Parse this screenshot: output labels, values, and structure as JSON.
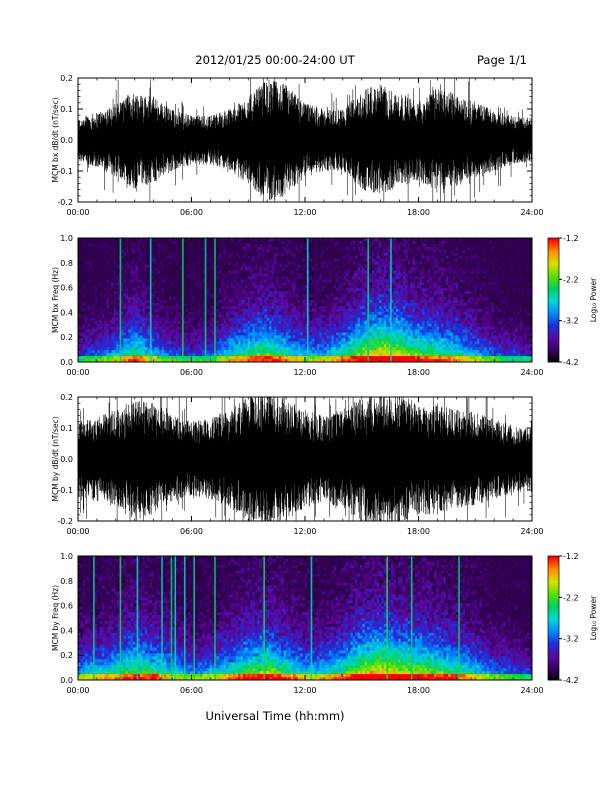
{
  "header": {
    "title": "2012/01/25  00:00-24:00 UT",
    "page": "Page 1/1"
  },
  "xlabel": "Universal Time (hh:mm)",
  "colors": {
    "trace": "#000000",
    "axes": "#000000",
    "spectrogram_bg": "#1a0033"
  },
  "colorbar": {
    "label": "Log₁₀ Power",
    "ticks": [
      "-1.2",
      "-2.2",
      "-3.2",
      "-4.2"
    ],
    "range": [
      -4.2,
      -1.2
    ],
    "palette": [
      "#000000",
      "#3a0060",
      "#5a0aa0",
      "#1f2fd8",
      "#008cff",
      "#00d8d8",
      "#00d060",
      "#58e000",
      "#d8e000",
      "#ff8c00",
      "#ff0000"
    ]
  },
  "chart_data": [
    {
      "type": "line",
      "title": "2012/01/25  00:00-24:00 UT",
      "ylabel": "MCM bx dB/dt (nT/sec)",
      "xlabel": "",
      "x_tick_labels": [
        "00:00",
        "06:00",
        "12:00",
        "18:00",
        "24:00"
      ],
      "y_tick_labels": [
        "0.2",
        "0.1",
        "0.0",
        "-0.1",
        "-0.2"
      ],
      "xlim": [
        0,
        24
      ],
      "ylim": [
        -0.2,
        0.2
      ],
      "envelope": {
        "x_hours": [
          0,
          1,
          2,
          3,
          4,
          5,
          6,
          7,
          8,
          9,
          10,
          11,
          12,
          13,
          14,
          15,
          16,
          17,
          18,
          19,
          20,
          21,
          22,
          23,
          24
        ],
        "amplitude": [
          0.07,
          0.09,
          0.12,
          0.16,
          0.14,
          0.1,
          0.08,
          0.08,
          0.1,
          0.14,
          0.2,
          0.18,
          0.12,
          0.1,
          0.1,
          0.16,
          0.18,
          0.15,
          0.13,
          0.17,
          0.15,
          0.12,
          0.1,
          0.08,
          0.07
        ]
      }
    },
    {
      "type": "heatmap",
      "ylabel": "MCM bx Freq (Hz)",
      "x_tick_labels": [
        "00:00",
        "06:00",
        "12:00",
        "18:00",
        "24:00"
      ],
      "y_tick_labels": [
        "1.0",
        "0.8",
        "0.6",
        "0.4",
        "0.2",
        "0.0"
      ],
      "xlim": [
        0,
        24
      ],
      "ylim": [
        0,
        1.0
      ],
      "activity": {
        "x_hours": [
          0,
          1,
          2,
          3,
          4,
          5,
          6,
          7,
          8,
          9,
          10,
          11,
          12,
          13,
          14,
          15,
          16,
          17,
          18,
          19,
          20,
          21,
          22,
          23,
          24
        ],
        "level": [
          0.3,
          0.35,
          0.45,
          0.6,
          0.45,
          0.35,
          0.3,
          0.35,
          0.5,
          0.6,
          0.65,
          0.55,
          0.45,
          0.45,
          0.55,
          0.7,
          0.8,
          0.75,
          0.65,
          0.6,
          0.55,
          0.45,
          0.35,
          0.3,
          0.25
        ]
      },
      "vertical_streaks_hours": [
        2.2,
        3.8,
        5.5,
        6.7,
        7.2,
        12.1,
        15.3,
        16.5
      ]
    },
    {
      "type": "line",
      "ylabel": "MCM by dB/dt (nT/sec)",
      "x_tick_labels": [
        "00:00",
        "06:00",
        "12:00",
        "18:00",
        "24:00"
      ],
      "y_tick_labels": [
        "0.2",
        "0.1",
        "0.0",
        "-0.1",
        "-0.2"
      ],
      "xlim": [
        0,
        24
      ],
      "ylim": [
        -0.2,
        0.2
      ],
      "envelope": {
        "x_hours": [
          0,
          1,
          2,
          3,
          4,
          5,
          6,
          7,
          8,
          9,
          10,
          11,
          12,
          13,
          14,
          15,
          16,
          17,
          18,
          19,
          20,
          21,
          22,
          23,
          24
        ],
        "amplitude": [
          0.12,
          0.14,
          0.16,
          0.2,
          0.18,
          0.14,
          0.12,
          0.13,
          0.16,
          0.2,
          0.22,
          0.2,
          0.16,
          0.14,
          0.16,
          0.2,
          0.22,
          0.21,
          0.18,
          0.18,
          0.16,
          0.15,
          0.13,
          0.11,
          0.1
        ]
      }
    },
    {
      "type": "heatmap",
      "ylabel": "MCM by Freq (Hz)",
      "x_tick_labels": [
        "00:00",
        "06:00",
        "12:00",
        "18:00",
        "24:00"
      ],
      "y_tick_labels": [
        "1.0",
        "0.8",
        "0.6",
        "0.4",
        "0.2",
        "0.0"
      ],
      "xlim": [
        0,
        24
      ],
      "ylim": [
        0,
        1.0
      ],
      "activity": {
        "x_hours": [
          0,
          1,
          2,
          3,
          4,
          5,
          6,
          7,
          8,
          9,
          10,
          11,
          12,
          13,
          14,
          15,
          16,
          17,
          18,
          19,
          20,
          21,
          22,
          23,
          24
        ],
        "level": [
          0.45,
          0.5,
          0.55,
          0.65,
          0.6,
          0.5,
          0.4,
          0.45,
          0.55,
          0.65,
          0.7,
          0.6,
          0.5,
          0.5,
          0.6,
          0.75,
          0.8,
          0.75,
          0.7,
          0.65,
          0.6,
          0.5,
          0.4,
          0.35,
          0.3
        ]
      },
      "vertical_streaks_hours": [
        0.8,
        2.2,
        3.1,
        4.4,
        4.9,
        5.1,
        5.6,
        6.1,
        7.2,
        9.8,
        12.3,
        16.3,
        17.6,
        20.1
      ]
    }
  ]
}
